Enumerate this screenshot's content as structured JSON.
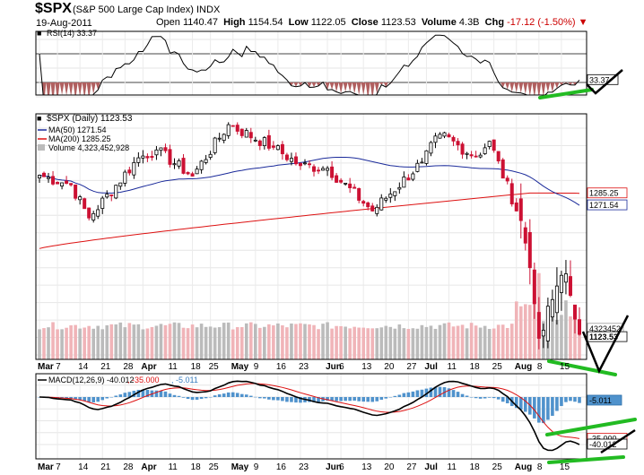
{
  "header": {
    "symbol": "$SPX",
    "name": "(S&P 500 Large Cap Index) INDX",
    "date": "19-Aug-2011",
    "open_label": "Open",
    "open": "1140.47",
    "high_label": "High",
    "high": "1154.54",
    "low_label": "Low",
    "low": "1122.05",
    "close_label": "Close",
    "close": "1123.53",
    "volume_label": "Volume",
    "volume": "4.3B",
    "chg_label": "Chg",
    "chg": "-17.12 (-1.50%)",
    "chg_icon": "down-triangle-icon"
  },
  "rsi_panel": {
    "legend": "RSI(14) 33.37",
    "ticks": [
      "90",
      "70",
      "50",
      "30",
      "10"
    ],
    "value_badge": "33.37"
  },
  "price_panel": {
    "legend_main": "$SPX (Daily) 1123.53",
    "legend_ma50": "MA(50) 1271.54",
    "legend_ma200": "MA(200) 1285.25",
    "legend_volume": "Volume 4,323,452,928",
    "price_ticks": [
      "1360",
      "1340",
      "1320",
      "1300",
      "1280",
      "1260",
      "1240",
      "1220",
      "1200",
      "1180",
      "1160",
      "1140",
      "1120",
      "1100"
    ],
    "volume_ticks": [
      "7.5B",
      "5.0B",
      "2.5B"
    ],
    "badges": {
      "ma200": "1285.25",
      "ma50": "1271.54",
      "volume": "4323452",
      "close": "1123.53"
    }
  },
  "macd_panel": {
    "legend_macd": "MACD(12,26,9) -40.012",
    "legend_signal": ", -35.000",
    "legend_hist": ", -5.011",
    "ticks": [
      "10",
      "0",
      "-10",
      "-20",
      "-30",
      "-40"
    ],
    "badges": {
      "hist": "-5.011",
      "signal": "-35.000",
      "macd": "-40.012"
    }
  },
  "x_axis": {
    "labels": [
      {
        "text": "Mar",
        "bold": true
      },
      {
        "text": "7",
        "bold": false
      },
      {
        "text": "14",
        "bold": false
      },
      {
        "text": "21",
        "bold": false
      },
      {
        "text": "28",
        "bold": false
      },
      {
        "text": "Apr",
        "bold": true
      },
      {
        "text": "11",
        "bold": false
      },
      {
        "text": "18",
        "bold": false
      },
      {
        "text": "25",
        "bold": false
      },
      {
        "text": "May",
        "bold": true
      },
      {
        "text": "9",
        "bold": false
      },
      {
        "text": "16",
        "bold": false
      },
      {
        "text": "23",
        "bold": false
      },
      {
        "text": "Jun",
        "bold": true
      },
      {
        "text": "6",
        "bold": false
      },
      {
        "text": "13",
        "bold": false
      },
      {
        "text": "20",
        "bold": false
      },
      {
        "text": "27",
        "bold": false
      },
      {
        "text": "Jul",
        "bold": true
      },
      {
        "text": "11",
        "bold": false
      },
      {
        "text": "18",
        "bold": false
      },
      {
        "text": "25",
        "bold": false
      },
      {
        "text": "Aug",
        "bold": true
      },
      {
        "text": "8",
        "bold": false
      },
      {
        "text": "15",
        "bold": false
      }
    ]
  },
  "colors": {
    "up": "#000000",
    "down": "#cc1133",
    "ma50": "#1a2a9a",
    "ma200": "#dd1111",
    "vol_up": "#bbbbbb",
    "vol_down": "#f0b4b8",
    "hist": "#4f92cc",
    "macd": "#000000",
    "signal": "#dd1111",
    "rsi_fill": "#b06060",
    "annot_black": "#000000",
    "annot_green": "#22bb22"
  },
  "chart_data": {
    "type": "candlestick",
    "title": "$SPX (S&P 500 Large Cap Index) INDX",
    "date_range": [
      "2011-03-01",
      "2011-08-19"
    ],
    "price_ylim": [
      1100,
      1370
    ],
    "price_key_points": [
      {
        "date": "2011-03-01",
        "close": 1306
      },
      {
        "date": "2011-03-10",
        "close": 1295
      },
      {
        "date": "2011-03-16",
        "close": 1257
      },
      {
        "date": "2011-03-31",
        "close": 1326
      },
      {
        "date": "2011-04-06",
        "close": 1335
      },
      {
        "date": "2011-04-18",
        "close": 1305
      },
      {
        "date": "2011-04-29",
        "close": 1364
      },
      {
        "date": "2011-05-13",
        "close": 1338
      },
      {
        "date": "2011-05-23",
        "close": 1317
      },
      {
        "date": "2011-06-01",
        "close": 1314
      },
      {
        "date": "2011-06-15",
        "close": 1265
      },
      {
        "date": "2011-06-30",
        "close": 1321
      },
      {
        "date": "2011-07-07",
        "close": 1353
      },
      {
        "date": "2011-07-19",
        "close": 1327
      },
      {
        "date": "2011-07-22",
        "close": 1345
      },
      {
        "date": "2011-08-02",
        "close": 1254
      },
      {
        "date": "2011-08-04",
        "close": 1200
      },
      {
        "date": "2011-08-08",
        "close": 1119
      },
      {
        "date": "2011-08-12",
        "close": 1179
      },
      {
        "date": "2011-08-16",
        "close": 1193
      },
      {
        "date": "2011-08-18",
        "close": 1141
      },
      {
        "date": "2011-08-19",
        "close": 1123.53
      }
    ],
    "ma50_last": 1271.54,
    "ma200_last": 1285.25,
    "rsi_ylim": [
      0,
      100
    ],
    "rsi_last": 33.37,
    "volume_last": 4323452928,
    "volume_ylim_billions": [
      0,
      10
    ],
    "macd": {
      "params": "12,26,9",
      "macd": -40.012,
      "signal": -35.0,
      "histogram": -5.011,
      "ylim": [
        -43,
        13
      ]
    }
  }
}
